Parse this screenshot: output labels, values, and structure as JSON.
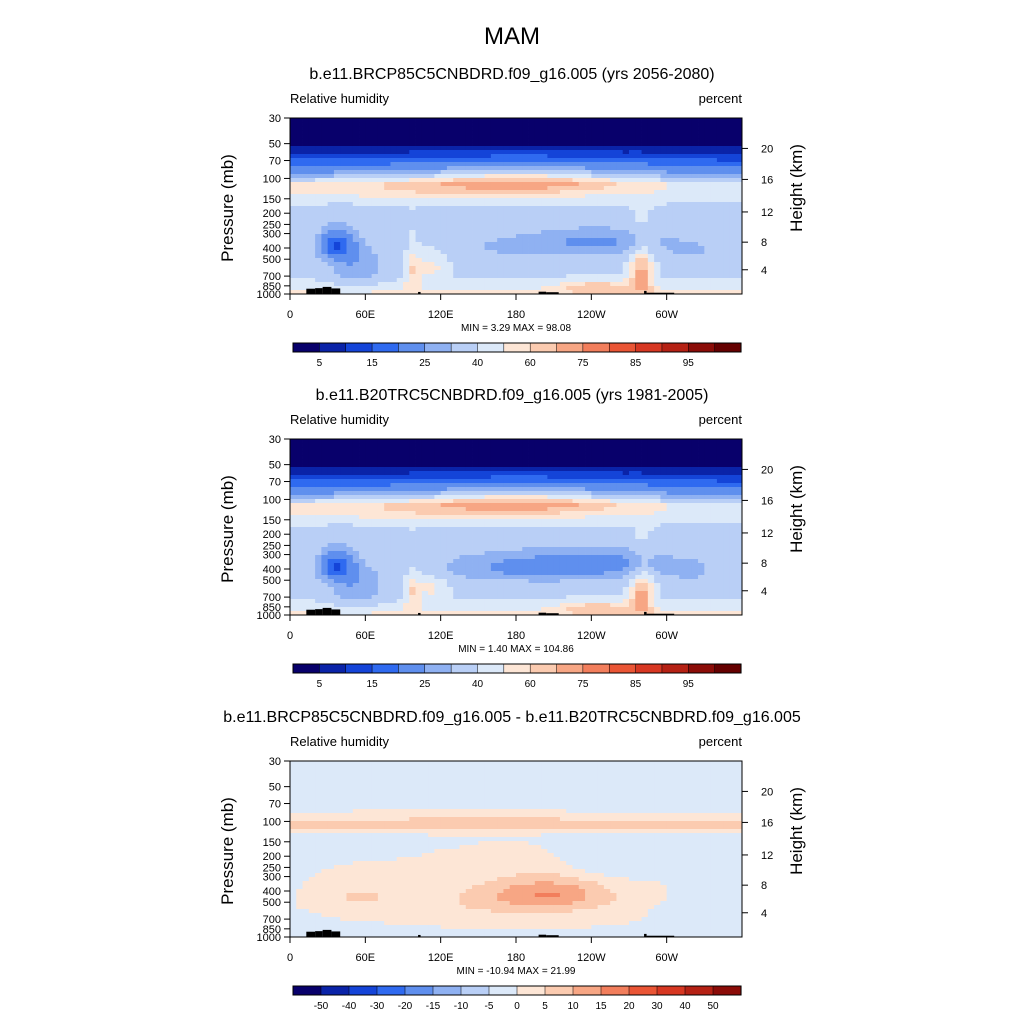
{
  "figure": {
    "season": "MAM"
  },
  "chart_data": [
    {
      "type": "heatmap",
      "title": "b.e11.BRCP85C5CNBDRD.f09_g16.005 (yrs 2056-2080)",
      "left_label": "Relative humidity",
      "right_label": "percent",
      "ylabel": "Pressure (mb)",
      "y2label": "Height (km)",
      "x_ticks": [
        "0",
        "60E",
        "120E",
        "180",
        "120W",
        "60W"
      ],
      "y_ticks": [
        "30",
        "50",
        "70",
        "100",
        "150",
        "200",
        "250",
        "300",
        "400",
        "500",
        "700",
        "850",
        "1000"
      ],
      "y2_ticks": [
        "20",
        "16",
        "12",
        "8",
        "4"
      ],
      "stats": "MIN =   3.29  MAX =  98.08",
      "min": 3.29,
      "max": 98.08,
      "colorbar_labels": [
        "5",
        "15",
        "25",
        "40",
        "60",
        "75",
        "85",
        "95"
      ],
      "colors": [
        "#08006b",
        "#0a23a8",
        "#1444d8",
        "#2f6af0",
        "#5f8fee",
        "#8fb1f2",
        "#b9cff6",
        "#dce9f9",
        "#fde6d6",
        "#fbcbb0",
        "#f7a684",
        "#f27e5c",
        "#ea5535",
        "#d73722",
        "#b52114",
        "#8b0c08",
        "#650000"
      ],
      "levels": [
        2.5,
        10,
        20,
        30,
        45,
        55,
        65,
        72,
        78,
        84,
        90,
        96,
        99
      ]
    },
    {
      "type": "heatmap",
      "title": "b.e11.B20TRC5CNBDRD.f09_g16.005 (yrs 1981-2005)",
      "left_label": "Relative humidity",
      "right_label": "percent",
      "ylabel": "Pressure (mb)",
      "y2label": "Height (km)",
      "x_ticks": [
        "0",
        "60E",
        "120E",
        "180",
        "120W",
        "60W"
      ],
      "y_ticks": [
        "30",
        "50",
        "70",
        "100",
        "150",
        "200",
        "250",
        "300",
        "400",
        "500",
        "700",
        "850",
        "1000"
      ],
      "y2_ticks": [
        "20",
        "16",
        "12",
        "8",
        "4"
      ],
      "stats": "MIN =   1.40  MAX = 104.86",
      "min": 1.4,
      "max": 104.86,
      "colorbar_labels": [
        "5",
        "15",
        "25",
        "40",
        "60",
        "75",
        "85",
        "95"
      ],
      "colors": [
        "#08006b",
        "#0a23a8",
        "#1444d8",
        "#2f6af0",
        "#5f8fee",
        "#8fb1f2",
        "#b9cff6",
        "#dce9f9",
        "#fde6d6",
        "#fbcbb0",
        "#f7a684",
        "#f27e5c",
        "#ea5535",
        "#d73722",
        "#b52114",
        "#8b0c08",
        "#650000"
      ],
      "levels": [
        2.5,
        10,
        20,
        30,
        45,
        55,
        65,
        72,
        78,
        84,
        90,
        96,
        99
      ]
    },
    {
      "type": "heatmap",
      "title": "b.e11.BRCP85C5CNBDRD.f09_g16.005 - b.e11.B20TRC5CNBDRD.f09_g16.005",
      "left_label": "Relative humidity",
      "right_label": "percent",
      "ylabel": "Pressure (mb)",
      "y2label": "Height (km)",
      "x_ticks": [
        "0",
        "60E",
        "120E",
        "180",
        "120W",
        "60W"
      ],
      "y_ticks": [
        "30",
        "50",
        "70",
        "100",
        "150",
        "200",
        "250",
        "300",
        "400",
        "500",
        "700",
        "850",
        "1000"
      ],
      "y2_ticks": [
        "20",
        "16",
        "12",
        "8",
        "4"
      ],
      "stats": "MIN = -10.94  MAX =  21.99",
      "min": -10.94,
      "max": 21.99,
      "colorbar_labels": [
        "-50",
        "-40",
        "-30",
        "-20",
        "-15",
        "-10",
        "-5",
        "0",
        "5",
        "10",
        "15",
        "20",
        "30",
        "40",
        "50"
      ],
      "colors": [
        "#08006b",
        "#0a23a8",
        "#1444d8",
        "#2f6af0",
        "#5f8fee",
        "#8fb1f2",
        "#b9cff6",
        "#dce9f9",
        "#fde6d6",
        "#fbcbb0",
        "#f7a684",
        "#f27e5c",
        "#ea5535",
        "#d73722",
        "#b52114",
        "#8b0c08"
      ],
      "levels": [
        -55,
        -45,
        -35,
        -25,
        -17.5,
        -12.5,
        -7.5,
        -2.5,
        2.5,
        7.5,
        12.5,
        17.5,
        25,
        35,
        45,
        55
      ]
    }
  ]
}
